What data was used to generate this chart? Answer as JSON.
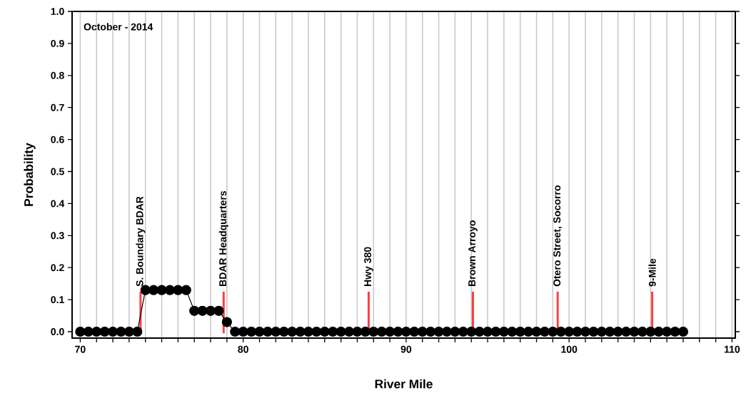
{
  "chart_data": {
    "type": "line",
    "xlabel": "River Mile",
    "ylabel": "Probability",
    "annotations": [
      "October - 2014"
    ],
    "series": [
      {
        "color": "#000000",
        "x": [
          70,
          70.5,
          71,
          71.5,
          72,
          72.5,
          73,
          73.5,
          74,
          74.5,
          75,
          75.5,
          76,
          76.5,
          77,
          77.5,
          78,
          78.5,
          79,
          79.5,
          80,
          80.5,
          81,
          81.5,
          82,
          82.5,
          83,
          83.5,
          84,
          84.5,
          85,
          85.5,
          86,
          86.5,
          87,
          87.5,
          88,
          88.5,
          89,
          89.5,
          90,
          90.5,
          91,
          91.5,
          92,
          92.5,
          93,
          93.5,
          94,
          94.5,
          95,
          95.5,
          96,
          96.5,
          97,
          97.5,
          98,
          98.5,
          99,
          99.5,
          100,
          100.5,
          101,
          101.5,
          102,
          102.5,
          103,
          103.5,
          104,
          104.5,
          105,
          105.5,
          106,
          106.5,
          107
        ],
        "values": [
          0,
          0,
          0,
          0,
          0,
          0,
          0,
          0,
          0.13,
          0.13,
          0.13,
          0.13,
          0.13,
          0.13,
          0.065,
          0.065,
          0.065,
          0.065,
          0.03,
          0,
          0,
          0,
          0,
          0,
          0,
          0,
          0,
          0,
          0,
          0,
          0,
          0,
          0,
          0,
          0,
          0,
          0,
          0,
          0,
          0,
          0,
          0,
          0,
          0,
          0,
          0,
          0,
          0,
          0,
          0,
          0,
          0,
          0,
          0,
          0,
          0,
          0,
          0,
          0,
          0,
          0,
          0,
          0,
          0,
          0,
          0,
          0,
          0,
          0,
          0,
          0,
          0,
          0,
          0,
          0
        ]
      }
    ],
    "marker": "circle",
    "line_style": "solid",
    "grid": "x",
    "xlim": [
      69.5,
      110.2
    ],
    "ylim": [
      -0.02,
      1.0
    ],
    "xticks": [
      70,
      {
        "value": 71,
        "label": null
      },
      {
        "value": 72,
        "label": null
      },
      {
        "value": 73,
        "label": null
      },
      {
        "value": 74,
        "label": null
      },
      {
        "value": 75,
        "label": null
      },
      {
        "value": 76,
        "label": null
      },
      {
        "value": 77,
        "label": null
      },
      {
        "value": 78,
        "label": null
      },
      {
        "value": 79,
        "label": null
      },
      80,
      {
        "value": 81,
        "label": null
      },
      {
        "value": 82,
        "label": null
      },
      {
        "value": 83,
        "label": null
      },
      {
        "value": 84,
        "label": null
      },
      {
        "value": 85,
        "label": null
      },
      {
        "value": 86,
        "label": null
      },
      {
        "value": 87,
        "label": null
      },
      {
        "value": 88,
        "label": null
      },
      {
        "value": 89,
        "label": null
      },
      90,
      {
        "value": 91,
        "label": null
      },
      {
        "value": 92,
        "label": null
      },
      {
        "value": 93,
        "label": null
      },
      {
        "value": 94,
        "label": null
      },
      {
        "value": 95,
        "label": null
      },
      {
        "value": 96,
        "label": null
      },
      {
        "value": 97,
        "label": null
      },
      {
        "value": 98,
        "label": null
      },
      {
        "value": 99,
        "label": null
      },
      100,
      {
        "value": 101,
        "label": null
      },
      {
        "value": 102,
        "label": null
      },
      {
        "value": 103,
        "label": null
      },
      {
        "value": 104,
        "label": null
      },
      {
        "value": 105,
        "label": null
      },
      {
        "value": 106,
        "label": null
      },
      {
        "value": 107,
        "label": null
      },
      {
        "value": 108,
        "label": null
      },
      {
        "value": 109,
        "label": null
      },
      110
    ],
    "yticks": [
      {
        "value": 0,
        "label": "0.0"
      },
      {
        "value": 0.1,
        "label": "0.1"
      },
      {
        "value": 0.2,
        "label": "0.2"
      },
      {
        "value": 0.3,
        "label": "0.3"
      },
      {
        "value": 0.4,
        "label": "0.4"
      },
      {
        "value": 0.5,
        "label": "0.5"
      },
      {
        "value": 0.6,
        "label": "0.6"
      },
      {
        "value": 0.7,
        "label": "0.7"
      },
      {
        "value": 0.8,
        "label": "0.8"
      },
      {
        "value": 0.9,
        "label": "0.9"
      },
      {
        "value": 1.0,
        "label": "1.0"
      }
    ],
    "ref_lines": [
      {
        "axis": "x",
        "value": 73.7,
        "label": "S. Boundary BDAR",
        "color": "#ff4040"
      },
      {
        "axis": "x",
        "value": 78.8,
        "label": "BDAR Headquarters",
        "color": "#ff4040"
      },
      {
        "axis": "x",
        "value": 87.7,
        "label": "Hwy 380",
        "color": "#ff4040"
      },
      {
        "axis": "x",
        "value": 94.1,
        "label": "Brown Arroyo",
        "color": "#ff4040"
      },
      {
        "axis": "x",
        "value": 99.3,
        "label": "Otero Street, Socorro",
        "color": "#ff4040"
      },
      {
        "axis": "x",
        "value": 105.1,
        "label": "9-Mile",
        "color": "#ff4040"
      }
    ]
  }
}
